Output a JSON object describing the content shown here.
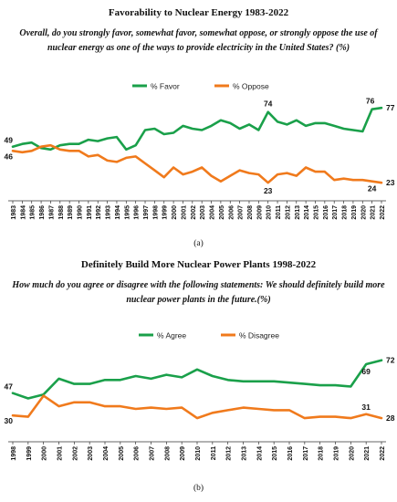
{
  "charts": [
    {
      "title": "Favorability to Nuclear Energy 1983-2022",
      "question": "Overall, do you strongly favor, somewhat favor, somewhat oppose, or strongly oppose the use of nuclear energy as one of the ways to provide electricity in the United States? (%)",
      "caption": "(a)"
    },
    {
      "title": "Definitely Build More Nuclear Power Plants 1998-2022",
      "question": "How much do you agree or disagree with the following statements: We should definitely build more nuclear power plants in the future.(%)",
      "caption": "(b)"
    }
  ],
  "chart_data": [
    {
      "type": "line",
      "title": "Favorability to Nuclear Energy 1983-2022",
      "x": [
        "1983",
        "1984",
        "1985",
        "1986",
        "1987",
        "1988",
        "1989",
        "1990",
        "1991",
        "1992",
        "1993",
        "1994",
        "1995",
        "1996",
        "1997",
        "1998",
        "1999",
        "2000",
        "2001",
        "2002",
        "2003",
        "2004",
        "2005",
        "2006",
        "2007",
        "2008",
        "2009",
        "2010",
        "2011",
        "2012",
        "2013",
        "2014",
        "2015",
        "2016",
        "2017",
        "2018",
        "2019",
        "2020",
        "2021",
        "2022"
      ],
      "ylim": [
        10,
        85
      ],
      "legend": "top-center",
      "grid": false,
      "series": [
        {
          "name": "% Favor",
          "color": "#1aa04a",
          "values": [
            49,
            51,
            52,
            48,
            47,
            50,
            51,
            51,
            54,
            53,
            55,
            56,
            47,
            50,
            61,
            62,
            58,
            59,
            64,
            62,
            61,
            64,
            68,
            66,
            62,
            65,
            61,
            74,
            67,
            65,
            68,
            64,
            66,
            66,
            64,
            62,
            61,
            60,
            76,
            77
          ]
        },
        {
          "name": "% Oppose",
          "color": "#f07a1c",
          "values": [
            46,
            45,
            46,
            49,
            50,
            47,
            46,
            46,
            42,
            43,
            39,
            38,
            41,
            42,
            37,
            32,
            27,
            34,
            29,
            31,
            34,
            28,
            24,
            28,
            32,
            30,
            29,
            23,
            29,
            30,
            28,
            34,
            31,
            31,
            25,
            26,
            25,
            25,
            24,
            23
          ]
        }
      ],
      "labels": [
        {
          "series": 0,
          "index": 0,
          "text": "49"
        },
        {
          "series": 1,
          "index": 0,
          "text": "46"
        },
        {
          "series": 0,
          "index": 27,
          "text": "74"
        },
        {
          "series": 1,
          "index": 27,
          "text": "23"
        },
        {
          "series": 0,
          "index": 38,
          "text": "76"
        },
        {
          "series": 0,
          "index": 39,
          "text": "77"
        },
        {
          "series": 1,
          "index": 38,
          "text": "24"
        },
        {
          "series": 1,
          "index": 39,
          "text": "23"
        }
      ]
    },
    {
      "type": "line",
      "title": "Definitely Build More Nuclear Power Plants 1998-2022",
      "x": [
        "1998",
        "1999",
        "2000",
        "2001",
        "2002",
        "2003",
        "2004",
        "2005",
        "2006",
        "2007",
        "2008",
        "2009",
        "2010",
        "2011",
        "2012",
        "2013",
        "2014",
        "2015",
        "2016",
        "2017",
        "2018",
        "2019",
        "2020",
        "2021",
        "2022"
      ],
      "ylim": [
        10,
        85
      ],
      "legend": "top-center",
      "grid": false,
      "series": [
        {
          "name": "% Agree",
          "color": "#1aa04a",
          "values": [
            47,
            43,
            46,
            58,
            54,
            54,
            57,
            57,
            60,
            58,
            61,
            59,
            65,
            60,
            57,
            56,
            56,
            56,
            55,
            54,
            53,
            53,
            52,
            69,
            72
          ]
        },
        {
          "name": "% Disagree",
          "color": "#f07a1c",
          "values": [
            30,
            29,
            45,
            37,
            40,
            40,
            37,
            37,
            35,
            36,
            35,
            36,
            28,
            32,
            34,
            36,
            35,
            34,
            34,
            28,
            29,
            29,
            28,
            31,
            28
          ]
        }
      ],
      "labels": [
        {
          "series": 0,
          "index": 0,
          "text": "47"
        },
        {
          "series": 1,
          "index": 0,
          "text": "30"
        },
        {
          "series": 0,
          "index": 23,
          "text": "69"
        },
        {
          "series": 0,
          "index": 24,
          "text": "72"
        },
        {
          "series": 1,
          "index": 23,
          "text": "31"
        },
        {
          "series": 1,
          "index": 24,
          "text": "28"
        }
      ]
    }
  ]
}
